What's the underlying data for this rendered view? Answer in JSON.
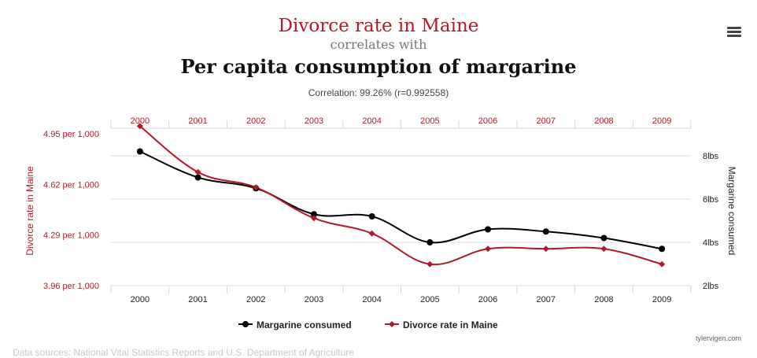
{
  "header": {
    "title_var1": "Divorce rate in Maine",
    "correlates_text": "correlates with",
    "title_var2": "Per capita consumption of margarine",
    "correlation_text": "Correlation: 99.26% (r=0.992558)",
    "menu_icon": "hamburger-menu-icon"
  },
  "footer": {
    "credit": "tylervigen.com",
    "sources": "Data sources: National Vital Statistics Reports and U.S. Department of Agriculture"
  },
  "colors": {
    "divorce": "#b01a28",
    "margarine": "#000000",
    "grid": "#d8dde3",
    "axis_tick": "#ccd6eb"
  },
  "chart_data": {
    "type": "line",
    "categories": [
      "2000",
      "2001",
      "2002",
      "2003",
      "2004",
      "2005",
      "2006",
      "2007",
      "2008",
      "2009"
    ],
    "top_axis_labels": [
      "2000",
      "2001",
      "2002",
      "2003",
      "2004",
      "2005",
      "2006",
      "2007",
      "2008",
      "2009"
    ],
    "series": [
      {
        "name": "Margarine consumed",
        "axis": "right",
        "values": [
          8.2,
          7.0,
          6.5,
          5.3,
          5.2,
          4.0,
          4.6,
          4.5,
          4.2,
          3.7
        ]
      },
      {
        "name": "Divorce rate in Maine",
        "axis": "left",
        "values": [
          5.0,
          4.7,
          4.6,
          4.4,
          4.3,
          4.1,
          4.2,
          4.2,
          4.2,
          4.1
        ]
      }
    ],
    "left_axis": {
      "label": "Divorce rate in Maine",
      "ylim": [
        3.96,
        4.95
      ],
      "tick_values": [
        3.96,
        4.29,
        4.62,
        4.95
      ],
      "tick_labels": [
        "3.96 per 1,000",
        "4.29 per 1,000",
        "4.62 per 1,000",
        "4.95 per 1,000"
      ]
    },
    "right_axis": {
      "label": "Margarine consumed",
      "ylim": [
        2,
        8
      ],
      "tick_values": [
        2,
        4,
        6,
        8
      ],
      "tick_labels": [
        "2lbs",
        "4lbs",
        "6lbs",
        "8lbs"
      ]
    },
    "legend": [
      "Margarine consumed",
      "Divorce rate in Maine"
    ],
    "legend_position": "bottom-center",
    "grid": true
  }
}
